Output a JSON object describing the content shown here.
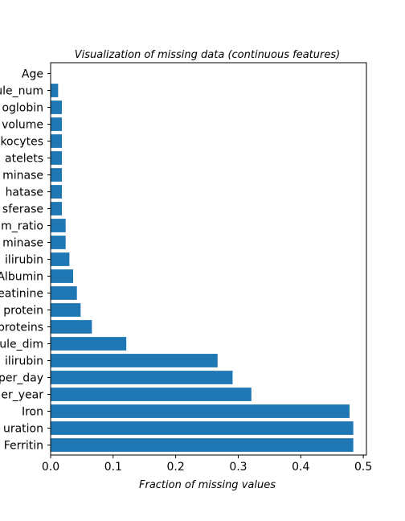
{
  "chart_data": {
    "type": "bar",
    "orientation": "horizontal",
    "title": "Visualization of missing data (continuous features)",
    "xlabel": "Fraction of missing values",
    "ylabel": "",
    "xlim": [
      0,
      0.505
    ],
    "xticks": [
      0,
      0.1,
      0.2,
      0.3,
      0.4,
      0.5
    ],
    "xtick_labels": [
      "0.0",
      "0.1",
      "0.2",
      "0.3",
      "0.4",
      "0.5"
    ],
    "bar_color": "#1f77b4",
    "grid": false,
    "categories": [
      "Age",
      "ule_num",
      "oglobin",
      "volume",
      "kocytes",
      "atelets",
      "minase",
      "hatase",
      "sferase",
      "m_ratio",
      "minase",
      "ilirubin",
      "Albumin",
      "eatinine",
      "protein",
      "proteins",
      "ule_dim",
      "ilirubin",
      "per_day",
      "er_year",
      "Iron",
      "uration",
      "Ferritin"
    ],
    "values": [
      0.0,
      0.012,
      0.018,
      0.018,
      0.018,
      0.018,
      0.018,
      0.018,
      0.018,
      0.024,
      0.024,
      0.03,
      0.036,
      0.042,
      0.048,
      0.066,
      0.121,
      0.267,
      0.291,
      0.321,
      0.478,
      0.484,
      0.484
    ]
  }
}
